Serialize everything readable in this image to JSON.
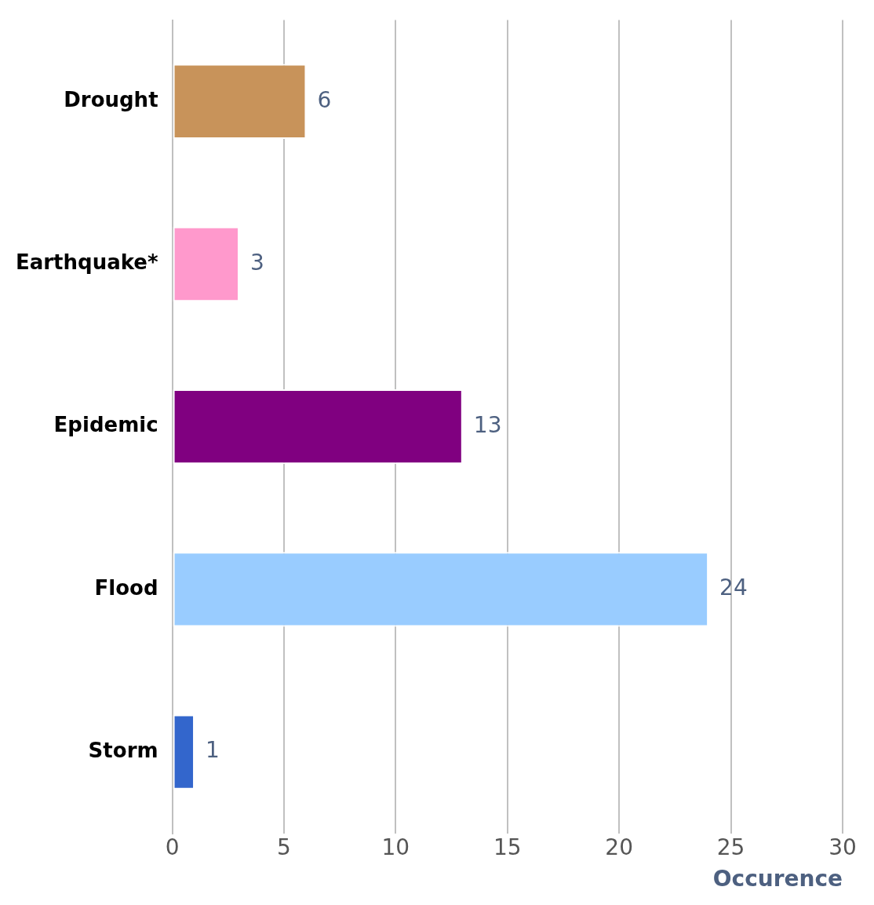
{
  "chart_data": {
    "type": "bar",
    "orientation": "horizontal",
    "xlabel": "Occurence",
    "categories": [
      "Drought",
      "Earthquake*",
      "Epidemic",
      "Flood",
      "Storm"
    ],
    "values": [
      6,
      3,
      13,
      24,
      1
    ],
    "colors": [
      "#c8935a",
      "#ff99cc",
      "#800080",
      "#99ccff",
      "#3366cc"
    ],
    "xlim": [
      0,
      30
    ],
    "xticks": [
      0,
      5,
      10,
      15,
      20,
      25,
      30
    ],
    "grid": "x",
    "data_labels": true,
    "legend": false
  }
}
